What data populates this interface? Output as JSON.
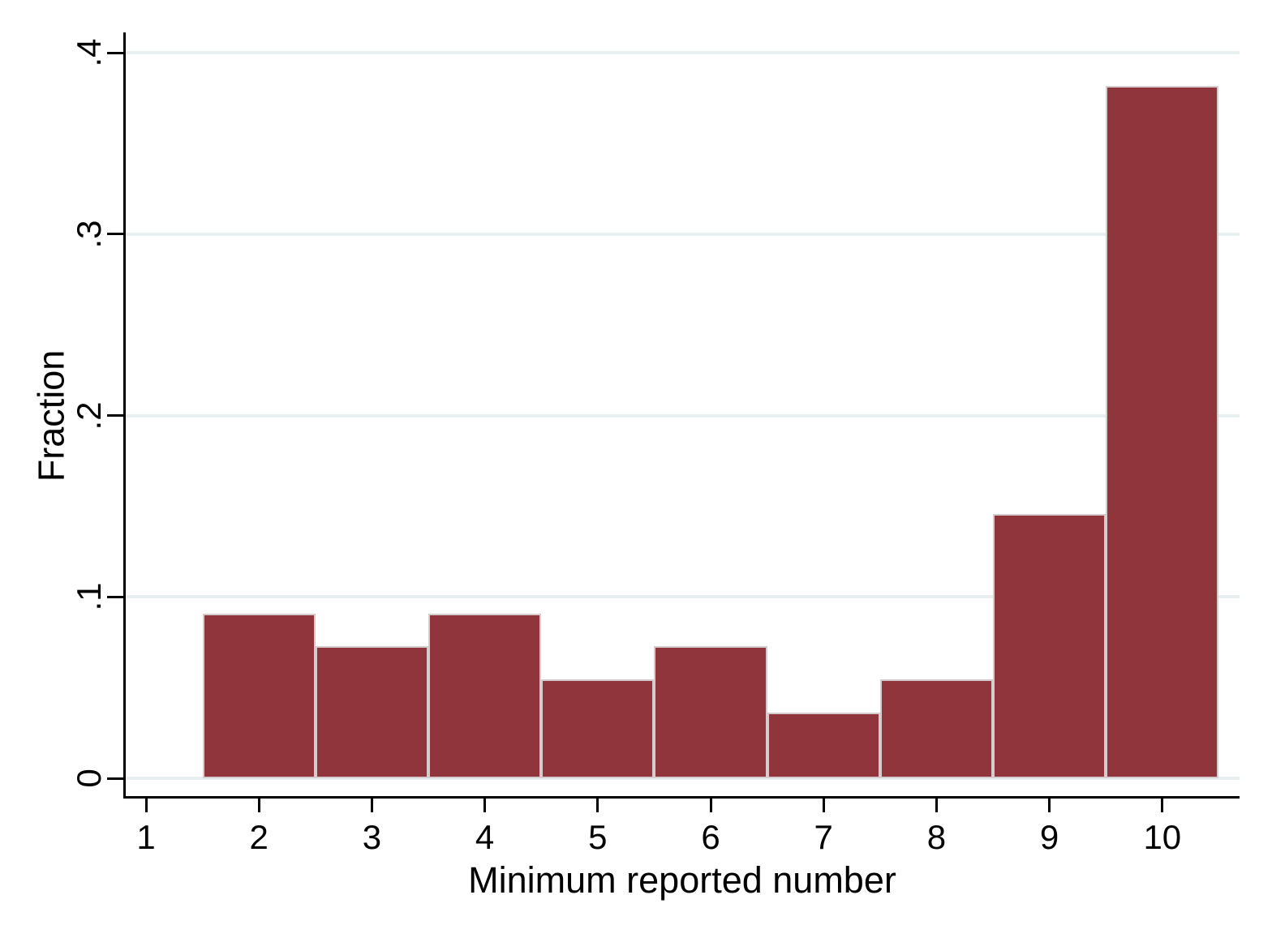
{
  "chart_data": {
    "type": "bar",
    "subtype": "histogram",
    "title": "",
    "xlabel": "Minimum reported number",
    "ylabel": "Fraction",
    "x": [
      2,
      3,
      4,
      5,
      6,
      7,
      8,
      9,
      10
    ],
    "values": [
      0.0909,
      0.0727,
      0.0909,
      0.0545,
      0.0727,
      0.0364,
      0.0545,
      0.1455,
      0.3818
    ],
    "bin_width": 1,
    "x_ticks": [
      1,
      2,
      3,
      4,
      5,
      6,
      7,
      8,
      9,
      10
    ],
    "y_ticks": [
      {
        "value": 0.0,
        "label": "0"
      },
      {
        "value": 0.1,
        "label": ".1"
      },
      {
        "value": 0.2,
        "label": ".2"
      },
      {
        "value": 0.3,
        "label": ".3"
      },
      {
        "value": 0.4,
        "label": ".4"
      }
    ],
    "xlim": [
      0.82,
      10.68
    ],
    "ylim": [
      0,
      0.4
    ],
    "grid": true,
    "legend": "none",
    "colors": {
      "bar_fill": "#90353b",
      "bar_outline": "#d6cbcd",
      "gridline": "#e8f0f2",
      "axis": "#000000",
      "background": "#ffffff"
    }
  }
}
